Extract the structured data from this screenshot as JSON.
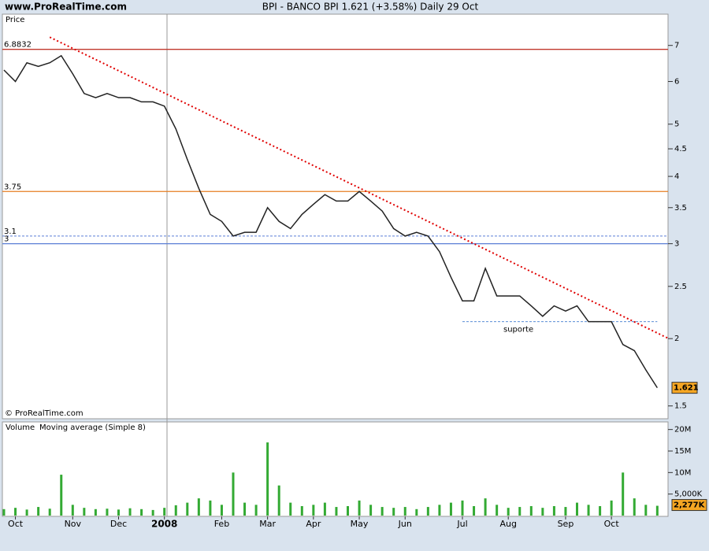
{
  "chart_data": {
    "type": "line",
    "site": "www.ProRealTime.com",
    "title": "BPI - BANCO BPI    1.621 (+3.58%)    Daily  29 Oct",
    "price_label": "Price",
    "copyright": "© ProRealTime.com",
    "log_scale": true,
    "categories": [
      null,
      "Oct",
      null,
      null,
      null,
      null,
      "Nov",
      null,
      null,
      null,
      "Dec",
      null,
      null,
      null,
      "2008",
      null,
      null,
      null,
      null,
      "Feb",
      null,
      null,
      null,
      "Mar",
      null,
      null,
      null,
      "Apr",
      null,
      null,
      null,
      "May",
      null,
      null,
      null,
      "Jun",
      null,
      null,
      null,
      null,
      "Jul",
      null,
      null,
      null,
      "Aug",
      null,
      null,
      null,
      null,
      "Sep",
      null,
      null,
      null,
      "Oct",
      null,
      null,
      null,
      null
    ],
    "series": [
      {
        "name": "BPI",
        "color": "#222222",
        "values": [
          6.3,
          6.0,
          6.5,
          6.4,
          6.5,
          6.7,
          6.2,
          5.7,
          5.6,
          5.7,
          5.6,
          5.6,
          5.5,
          5.5,
          5.4,
          4.9,
          4.3,
          3.8,
          3.4,
          3.3,
          3.1,
          3.15,
          3.15,
          3.5,
          3.3,
          3.2,
          3.4,
          3.55,
          3.7,
          3.6,
          3.6,
          3.75,
          3.6,
          3.45,
          3.2,
          3.1,
          3.15,
          3.1,
          2.9,
          2.6,
          2.35,
          2.35,
          2.7,
          2.4,
          2.4,
          2.4,
          2.3,
          2.2,
          2.3,
          2.25,
          2.3,
          2.15,
          2.15,
          2.15,
          1.95,
          1.9,
          1.75,
          1.621
        ]
      }
    ],
    "last_price": {
      "value": 1.621,
      "label": "1.621"
    },
    "ylim": [
      1.42,
      8.0
    ],
    "yticks": [
      1.5,
      2,
      2.5,
      3,
      3.5,
      4,
      4.5,
      5,
      6,
      7
    ],
    "levels": [
      {
        "value": 6.8832,
        "label": "6.8832",
        "color": "#c0392b",
        "dashed": false
      },
      {
        "value": 3.75,
        "label": "3.75",
        "color": "#e67e22",
        "dashed": false
      },
      {
        "value": 3.1,
        "label": "3.1",
        "color": "#5b7fd6",
        "dashed": true
      },
      {
        "value": 3,
        "label": "3",
        "color": "#5b7fd6",
        "dashed": false
      }
    ],
    "trendline": {
      "from": [
        4,
        7.25
      ],
      "to": [
        58,
        2.0
      ],
      "color": "#e00000"
    },
    "support": {
      "from": 40,
      "to": 57,
      "value": 2.15,
      "label": "suporte",
      "color": "#5b8fd6"
    },
    "volume": {
      "name": "Volume",
      "ma_label": "Moving average (Simple 8)",
      "color": "#33aa33",
      "values": [
        1500000,
        1800000,
        1400000,
        2000000,
        1600000,
        9500000,
        2500000,
        1800000,
        1500000,
        1600000,
        1400000,
        1700000,
        1500000,
        1300000,
        1800000,
        2400000,
        3000000,
        4000000,
        3500000,
        2500000,
        10000000,
        3000000,
        2500000,
        17000000,
        7000000,
        3000000,
        2200000,
        2500000,
        3000000,
        2000000,
        2200000,
        3500000,
        2500000,
        2000000,
        1800000,
        2000000,
        1500000,
        2000000,
        2500000,
        3000000,
        3500000,
        2200000,
        4000000,
        2500000,
        1800000,
        2000000,
        2200000,
        1800000,
        2200000,
        2000000,
        3000000,
        2500000,
        2200000,
        3500000,
        10000000,
        4000000,
        2500000,
        2277000
      ],
      "last": {
        "value": 2277000,
        "label": "2,277K"
      },
      "ylim": [
        0,
        21400000
      ],
      "yticks": [
        {
          "value": 5000000,
          "label": "5,000K"
        },
        {
          "value": 10000000,
          "label": "10M"
        },
        {
          "value": 15000000,
          "label": "15M"
        },
        {
          "value": 20000000,
          "label": "20M"
        }
      ]
    }
  }
}
